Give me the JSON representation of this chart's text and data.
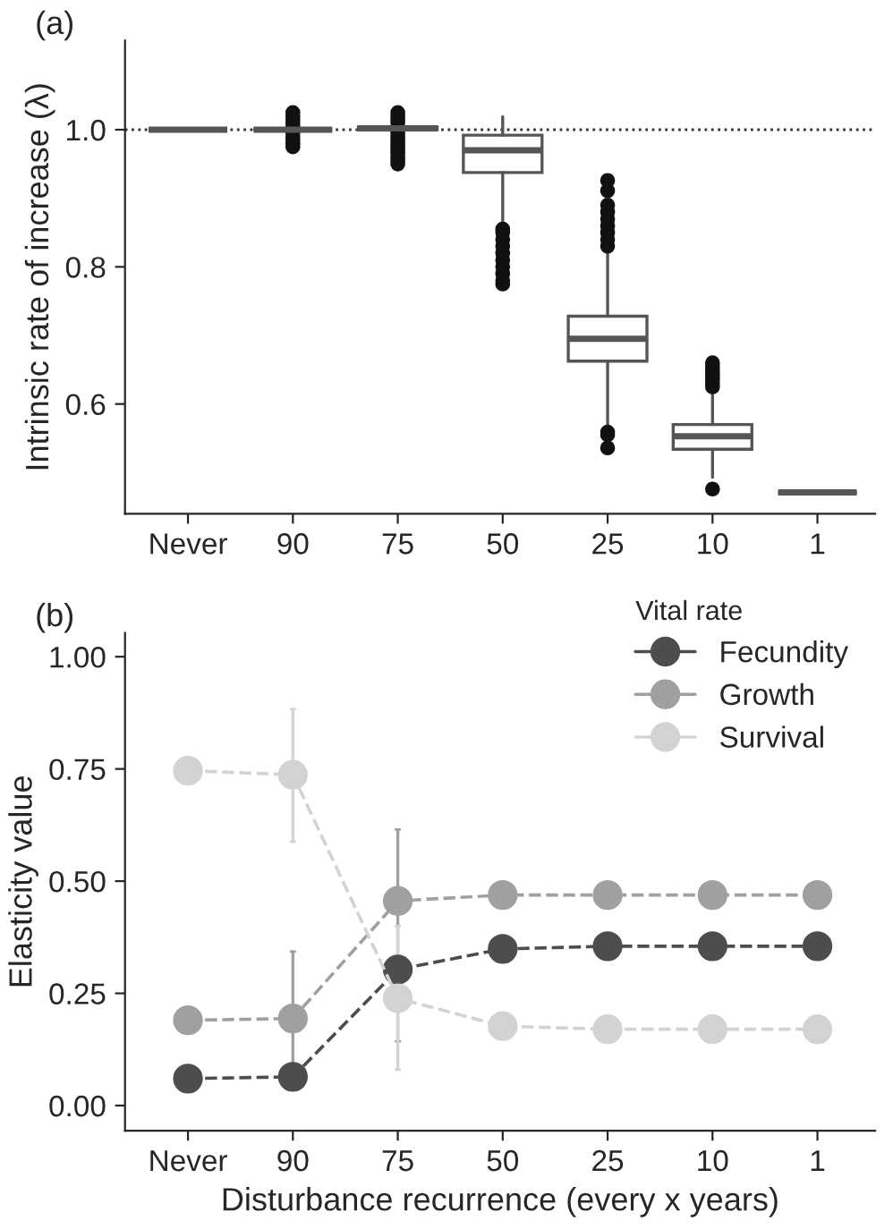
{
  "chart_data": [
    {
      "type": "box",
      "title": "(a)",
      "ylabel": "Intrinsic rate of increase (λ)",
      "categories": [
        "Never",
        "90",
        "75",
        "50",
        "25",
        "10",
        "1"
      ],
      "boxes": [
        {
          "low": 1.0,
          "q1": 1.0,
          "median": 1.0,
          "q3": 1.0,
          "high": 1.0
        },
        {
          "low": 1.0,
          "q1": 1.0,
          "median": 1.0,
          "q3": 1.0,
          "high": 1.0,
          "outliers": [
            0.975,
            0.98,
            0.985,
            0.99,
            0.995,
            1.005,
            1.01,
            1.015,
            1.02,
            1.025
          ]
        },
        {
          "low": 0.998,
          "q1": 1.0,
          "median": 1.002,
          "q3": 1.004,
          "high": 1.006,
          "outliers": [
            0.95,
            0.955,
            0.96,
            0.965,
            0.97,
            0.975,
            0.98,
            0.985,
            0.99,
            0.995,
            1.01,
            1.015,
            1.02,
            1.025
          ]
        },
        {
          "low": 0.863,
          "q1": 0.9375,
          "median": 0.97,
          "q3": 0.992,
          "high": 1.019,
          "outliers": [
            0.775,
            0.78,
            0.79,
            0.8,
            0.81,
            0.82,
            0.83,
            0.84,
            0.85,
            0.855
          ]
        },
        {
          "low": 0.566,
          "q1": 0.6625,
          "median": 0.695,
          "q3": 0.728,
          "high": 0.826,
          "outliers": [
            0.536,
            0.555,
            0.559,
            0.83,
            0.84,
            0.85,
            0.86,
            0.87,
            0.88,
            0.89,
            0.911,
            0.926
          ]
        },
        {
          "low": 0.493,
          "q1": 0.534,
          "median": 0.553,
          "q3": 0.57,
          "high": 0.62,
          "outliers": [
            0.476,
            0.625,
            0.63,
            0.635,
            0.64,
            0.645,
            0.65,
            0.655,
            0.66
          ]
        },
        {
          "low": 0.471,
          "q1": 0.471,
          "median": 0.471,
          "q3": 0.471,
          "high": 0.471
        }
      ],
      "ylim": [
        0.44,
        1.13
      ],
      "yticks": [
        {
          "value": 0.6,
          "label": "0.6"
        },
        {
          "value": 0.8,
          "label": "0.8"
        },
        {
          "value": 1.0,
          "label": "1.0"
        }
      ],
      "ref_lines": [
        {
          "axis": "y",
          "value": 1.0,
          "line_style": "dotted",
          "color": "#333333"
        }
      ],
      "grid": false
    },
    {
      "type": "line",
      "title": "(b)",
      "xlabel": "Disturbance recurrence (every x years)",
      "ylabel": "Elasticity value",
      "legend_title": "Vital rate",
      "categories": [
        "Never",
        "90",
        "75",
        "50",
        "25",
        "10",
        "1"
      ],
      "series": [
        {
          "name": "Fecundity",
          "color": "#4d4d4d",
          "values": [
            0.06,
            0.064,
            0.303,
            0.349,
            0.355,
            0.355,
            0.355
          ]
        },
        {
          "name": "Growth",
          "color": "#a0a0a2",
          "values": [
            0.19,
            0.194,
            0.456,
            0.469,
            0.469,
            0.469,
            0.469
          ],
          "errors": [
            null,
            [
              0.09,
              0.343
            ],
            [
              0.143,
              0.615
            ],
            null,
            null,
            null,
            null
          ]
        },
        {
          "name": "Survival",
          "color": "#d3d3d3",
          "values": [
            0.746,
            0.737,
            0.239,
            0.177,
            0.17,
            0.17,
            0.17
          ],
          "errors": [
            null,
            [
              0.588,
              0.883
            ],
            [
              0.08,
              0.4
            ],
            null,
            null,
            null,
            null
          ]
        }
      ],
      "ylim": [
        -0.056,
        1.053
      ],
      "yticks": [
        {
          "value": 0,
          "label": "0.00"
        },
        {
          "value": 0.25,
          "label": "0.25"
        },
        {
          "value": 0.5,
          "label": "0.50"
        },
        {
          "value": 0.75,
          "label": "0.75"
        },
        {
          "value": 1.0,
          "label": "1.00"
        }
      ],
      "marker": "circle",
      "line_style": "dashed",
      "legend": "top right",
      "grid": false
    }
  ]
}
